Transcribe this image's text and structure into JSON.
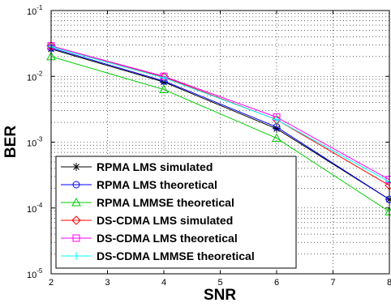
{
  "chart_data": {
    "type": "line",
    "xlabel": "SNR",
    "ylabel": "BER",
    "yscale": "log",
    "xlim": [
      2,
      8
    ],
    "ylim": [
      1e-05,
      0.1
    ],
    "x_ticks": [
      "2",
      "3",
      "4",
      "5",
      "6",
      "7",
      "8"
    ],
    "y_ticks": [
      {
        "base": "10",
        "exp": "-1"
      },
      {
        "base": "10",
        "exp": "-2"
      },
      {
        "base": "10",
        "exp": "-3"
      },
      {
        "base": "10",
        "exp": "-4"
      },
      {
        "base": "10",
        "exp": "-5"
      }
    ],
    "grid": true,
    "legend_position": "bottom-left",
    "x": [
      2,
      4,
      6,
      8
    ],
    "series": [
      {
        "name": "RPMA LMS simulated",
        "color": "#000000",
        "marker": "asterisk",
        "values": [
          0.026,
          0.0082,
          0.0016,
          0.000135
        ]
      },
      {
        "name": "RPMA LMS theoretical",
        "color": "#0000ff",
        "marker": "circle",
        "values": [
          0.027,
          0.0085,
          0.0017,
          0.000135
        ]
      },
      {
        "name": "RPMA LMMSE theoretical",
        "color": "#00cc00",
        "marker": "triangle",
        "values": [
          0.02,
          0.0063,
          0.00115,
          8.8e-05
        ]
      },
      {
        "name": "DS-CDMA LMS simulated",
        "color": "#ff0000",
        "marker": "diamond",
        "values": [
          0.029,
          0.0098,
          0.0022,
          0.00022
        ]
      },
      {
        "name": "DS-CDMA LMS theoretical",
        "color": "#ff00ff",
        "marker": "square",
        "values": [
          0.029,
          0.01,
          0.0024,
          0.00027
        ]
      },
      {
        "name": "DS-CDMA LMMSE theoretical",
        "color": "#00ffff",
        "marker": "plus",
        "values": [
          0.028,
          0.0095,
          0.0022,
          0.00025
        ]
      }
    ]
  }
}
